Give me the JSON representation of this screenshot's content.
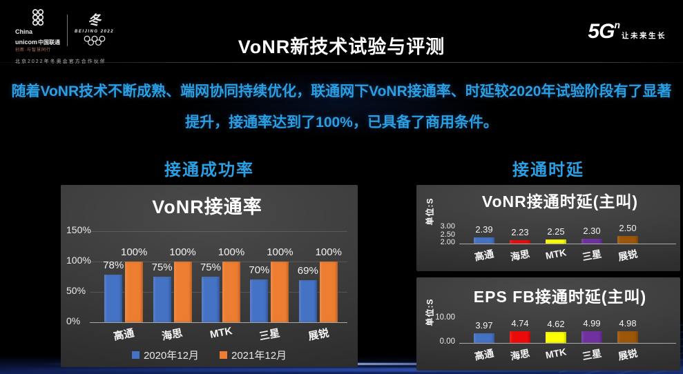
{
  "header": {
    "title": "VoNR新技术试验与评测",
    "logos": {
      "unicom_en1": "China",
      "unicom_en2": "unicom",
      "unicom_cn": "中国联通",
      "unicom_tagline": "创新·与智慧同行",
      "olympic_emblem": "冬",
      "olympic_wordmark": "BEIJING 2022",
      "partnership_text": "北京2022年冬奥会官方合作伙伴"
    },
    "brand": {
      "mark": "5G",
      "sup": "n",
      "slogan": "让未来生长"
    }
  },
  "banner": {
    "line1": "随着VoNR技术不断成熟、端网协同持续优化，联通网下VoNR接通率、时延较2020年试验阶段有了显著",
    "line2": "提升，接通率达到了100%，已具备了商用条件。"
  },
  "sections": {
    "left_header": "接通成功率",
    "right_header": "接通时延"
  },
  "colors": {
    "accent_blue": "#2B9FE3",
    "series_2020_blue": "#4472C4",
    "series_2021_orange": "#ED7D31",
    "bar_red": "#ED0A0A",
    "bar_yellow": "#FFFF00",
    "bar_purple": "#7030A0",
    "bar_brown": "#9C5708"
  },
  "chart_data": [
    {
      "type": "bar",
      "title": "VoNR接通率",
      "categories": [
        "高通",
        "海思",
        "MTK",
        "三星",
        "展锐"
      ],
      "series": [
        {
          "name": "2020年12月",
          "color": "#4472C4",
          "values": [
            78,
            75,
            75,
            70,
            69
          ],
          "labels": [
            "78%",
            "75%",
            "75%",
            "70%",
            "69%"
          ]
        },
        {
          "name": "2021年12月",
          "color": "#ED7D31",
          "values": [
            100,
            100,
            100,
            100,
            100
          ],
          "labels": [
            "100%",
            "100%",
            "100%",
            "100%",
            "100%"
          ]
        }
      ],
      "y_ticks": [
        "150%",
        "100%",
        "50%",
        "0%"
      ],
      "ylim": [
        0,
        150
      ],
      "grid": true,
      "show_legend": true,
      "legend_position": "bottom"
    },
    {
      "type": "bar",
      "title": "VoNR接通时延(主叫)",
      "unit_label": "单位:S",
      "categories": [
        "高通",
        "海思",
        "MTK",
        "三星",
        "展锐"
      ],
      "values": [
        2.39,
        2.23,
        2.25,
        2.3,
        2.5
      ],
      "labels": [
        "2.39",
        "2.23",
        "2.25",
        "2.30",
        "2.50"
      ],
      "colors": [
        "#4472C4",
        "#ED0A0A",
        "#FFFF00",
        "#7030A0",
        "#9C5708"
      ],
      "y_ticks": [
        "3.00",
        "2.50",
        "2.00"
      ],
      "ylim": [
        2.0,
        3.0
      ],
      "grid": false
    },
    {
      "type": "bar",
      "title": "EPS FB接通时延(主叫)",
      "unit_label": "单位:S",
      "categories": [
        "高通",
        "海思",
        "MTK",
        "三星",
        "展锐"
      ],
      "values": [
        3.97,
        4.74,
        4.62,
        4.99,
        4.98
      ],
      "labels": [
        "3.97",
        "4.74",
        "4.62",
        "4.99",
        "4.98"
      ],
      "colors": [
        "#4472C4",
        "#ED0A0A",
        "#FFFF00",
        "#7030A0",
        "#9C5708"
      ],
      "y_ticks": [
        "10.00",
        "0.00"
      ],
      "ylim": [
        0,
        10
      ],
      "grid": false
    }
  ]
}
